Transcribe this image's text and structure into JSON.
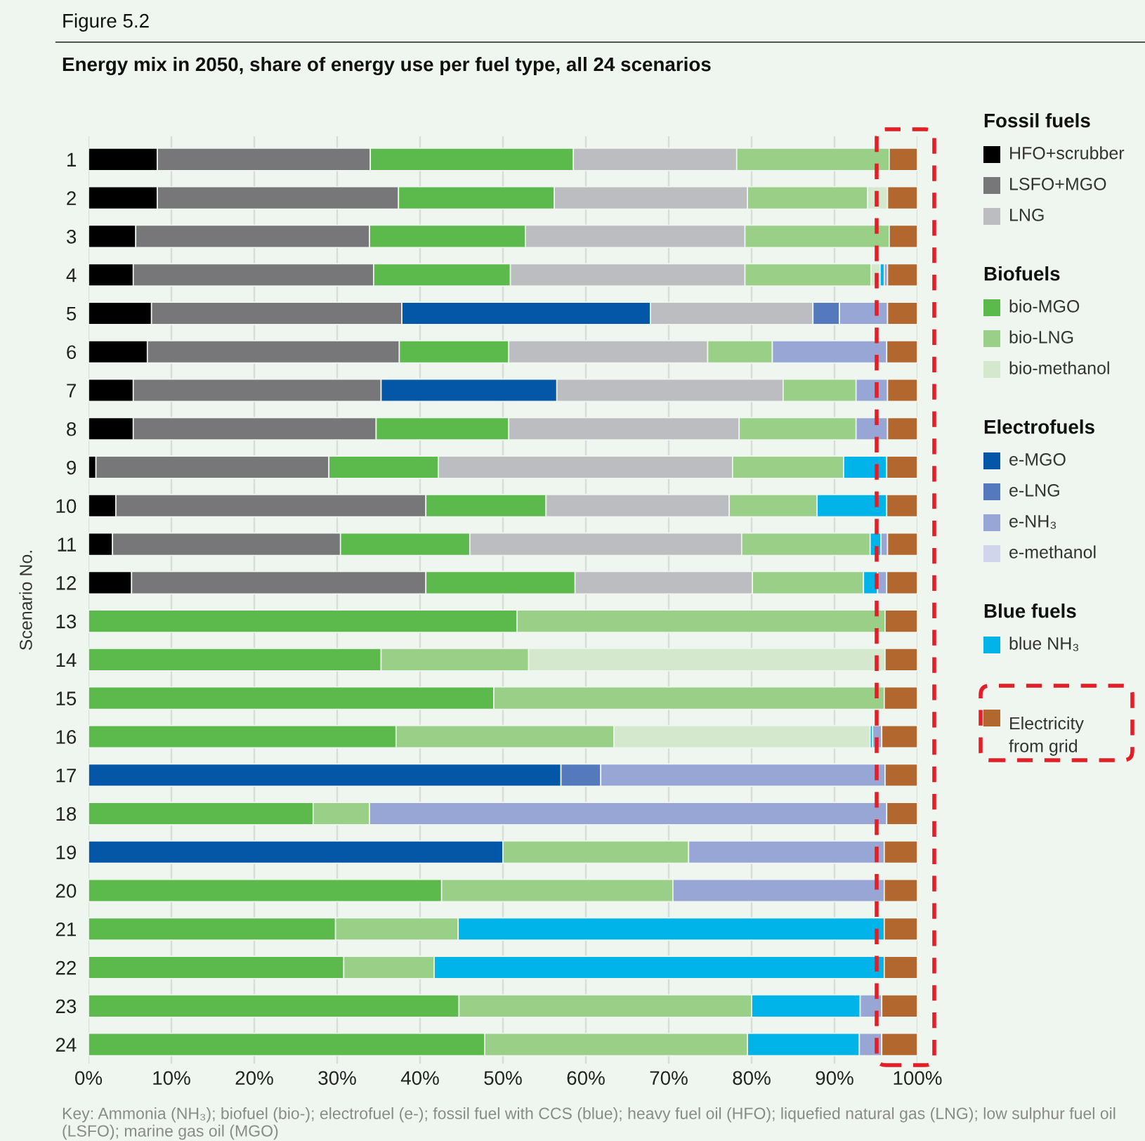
{
  "chart_data": {
    "type": "bar",
    "orientation": "horizontal",
    "stacked": true,
    "title": "Energy mix in 2050, share of energy use per fuel type, all 24 scenarios",
    "ylabel": "Scenario No.",
    "annotations": [
      "Figure 5.2",
      "Key: Ammonia (NH₃); biofuel (bio-); electrofuel (e-); fossil fuel with CCS (blue); heavy fuel oil (HFO); liquefied natural gas (LNG); low sulphur fuel oil (LSFO); marine gas oil (MGO)",
      "Fossil fuels",
      "Biofuels",
      "Electrofuels",
      "Blue fuels"
    ],
    "categories": [
      "1",
      "2",
      "3",
      "4",
      "5",
      "6",
      "7",
      "8",
      "9",
      "10",
      "11",
      "12",
      "13",
      "14",
      "15",
      "16",
      "17",
      "18",
      "19",
      "20",
      "21",
      "22",
      "23",
      "24"
    ],
    "xlim": [
      0,
      100
    ],
    "xticks": [
      {
        "value": 0,
        "label": "0%"
      },
      {
        "value": 10,
        "label": "10%"
      },
      {
        "value": 20,
        "label": "20%"
      },
      {
        "value": 30,
        "label": "30%"
      },
      {
        "value": 40,
        "label": "40%"
      },
      {
        "value": 50,
        "label": "50%"
      },
      {
        "value": 60,
        "label": "60%"
      },
      {
        "value": 70,
        "label": "70%"
      },
      {
        "value": 80,
        "label": "80%"
      },
      {
        "value": 90,
        "label": "90%"
      },
      {
        "value": 100,
        "label": "100%"
      }
    ],
    "grid": "x",
    "legend": "right",
    "series": [
      {
        "name": "HFO+scrubber",
        "color": "#000000",
        "values": [
          8.3,
          8.3,
          5.7,
          5.4,
          7.6,
          7.1,
          5.4,
          5.4,
          0.9,
          3.3,
          2.9,
          5.2,
          null,
          null,
          null,
          null,
          null,
          null,
          null,
          null,
          null,
          null,
          null,
          null
        ]
      },
      {
        "name": "LSFO+MGO",
        "color": "#77777a",
        "values": [
          25.7,
          29.1,
          28.2,
          29.0,
          30.2,
          30.4,
          29.9,
          29.3,
          28.1,
          37.4,
          27.5,
          35.5,
          null,
          null,
          null,
          null,
          null,
          null,
          null,
          null,
          null,
          null,
          null,
          null
        ]
      },
      {
        "name": "bio-MGO",
        "color": "#5cb94b",
        "values": [
          24.5,
          18.8,
          18.8,
          16.5,
          null,
          13.2,
          null,
          16.0,
          13.2,
          14.5,
          15.6,
          18.0,
          51.7,
          35.3,
          48.9,
          37.1,
          null,
          27.1,
          null,
          42.6,
          29.8,
          30.8,
          44.7,
          47.8
        ]
      },
      {
        "name": "e-MGO",
        "color": "#0457a7",
        "values": [
          null,
          null,
          null,
          null,
          30.0,
          null,
          21.2,
          null,
          null,
          null,
          null,
          null,
          null,
          null,
          null,
          null,
          57.0,
          null,
          50.0,
          null,
          null,
          null,
          null,
          null
        ]
      },
      {
        "name": "LNG",
        "color": "#bcbdc0",
        "values": [
          19.7,
          23.3,
          26.5,
          28.3,
          19.6,
          24.0,
          27.3,
          27.8,
          35.5,
          22.1,
          32.8,
          21.4,
          null,
          null,
          null,
          null,
          null,
          null,
          null,
          null,
          null,
          null,
          null,
          null
        ]
      },
      {
        "name": "bio-LNG",
        "color": "#99cf87",
        "values": [
          18.4,
          14.5,
          17.4,
          15.2,
          null,
          7.8,
          8.8,
          14.1,
          13.4,
          10.6,
          15.5,
          13.4,
          44.4,
          17.8,
          47.1,
          26.3,
          null,
          6.8,
          22.4,
          27.9,
          14.8,
          10.9,
          35.3,
          31.7
        ]
      },
      {
        "name": "bio-methanol",
        "color": "#d3e8cc",
        "values": [
          null,
          2.4,
          null,
          1.1,
          null,
          null,
          null,
          null,
          null,
          null,
          null,
          null,
          null,
          43.0,
          null,
          30.9,
          null,
          null,
          null,
          null,
          null,
          null,
          null,
          null
        ]
      },
      {
        "name": "e-LNG",
        "color": "#5479bc",
        "values": [
          null,
          null,
          null,
          null,
          3.2,
          null,
          null,
          null,
          null,
          null,
          null,
          null,
          null,
          null,
          null,
          null,
          4.8,
          null,
          null,
          null,
          null,
          null,
          null,
          null
        ]
      },
      {
        "name": "blue NH₃",
        "color": "#00b4ea",
        "values": [
          null,
          null,
          null,
          0.5,
          null,
          null,
          null,
          null,
          5.2,
          8.4,
          1.3,
          1.7,
          null,
          null,
          null,
          0.3,
          null,
          null,
          null,
          null,
          51.4,
          54.3,
          13.1,
          13.5
        ]
      },
      {
        "name": "e-NH₃",
        "color": "#97a6d4",
        "values": [
          null,
          null,
          null,
          0.4,
          5.8,
          13.8,
          3.8,
          3.8,
          null,
          null,
          0.8,
          1.1,
          null,
          null,
          null,
          1.1,
          34.3,
          62.4,
          23.6,
          25.5,
          null,
          null,
          2.6,
          2.7
        ]
      },
      {
        "name": "e-methanol",
        "color": "#d0d5ec",
        "values": [
          null,
          null,
          null,
          null,
          null,
          null,
          null,
          null,
          null,
          null,
          null,
          null,
          null,
          null,
          null,
          null,
          null,
          null,
          null,
          null,
          null,
          null,
          null,
          null
        ]
      },
      {
        "name": "Electricity\nfrom grid",
        "color": "#b1672d",
        "values": [
          3.4,
          3.6,
          3.4,
          3.6,
          3.6,
          3.7,
          3.6,
          3.6,
          3.7,
          3.7,
          3.6,
          3.7,
          3.9,
          3.9,
          4.0,
          4.3,
          3.9,
          3.7,
          4.0,
          4.0,
          4.0,
          4.0,
          4.3,
          4.3
        ]
      }
    ]
  }
}
